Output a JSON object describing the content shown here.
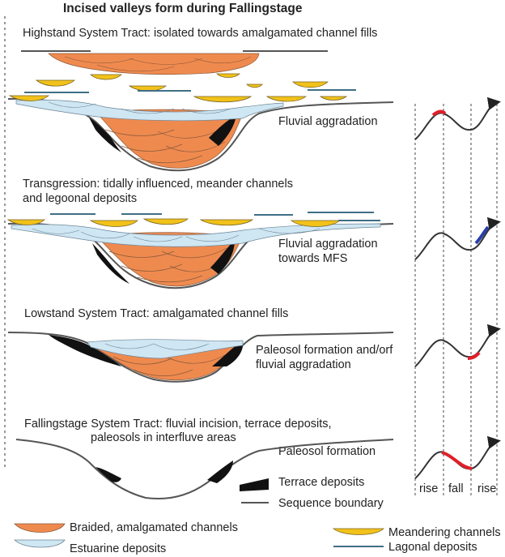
{
  "title": "Incised valleys form during Fallingstage",
  "panels": [
    {
      "heading": "Highstand System Tract: isolated towards amalgamated channel fills",
      "process": "Fluvial aggradation"
    },
    {
      "heading_line1": "Transgression: tidally influenced, meander channels",
      "heading_line2": "and legoonal deposits",
      "process_line1": "Fluvial aggradation",
      "process_line2": "towards MFS"
    },
    {
      "heading": "Lowstand System Tract: amalgamated channel fills",
      "process_line1": "Paleosol formation and/orf",
      "process_line2": "fluvial aggradation"
    },
    {
      "heading_line1": "Fallingstage System Tract: fluvial incision, terrace deposits,",
      "heading_line2": "paleosols in interfluve areas",
      "process": "Paleosol formation"
    }
  ],
  "sea_level_labels": [
    "rise",
    "fall",
    "rise"
  ],
  "legend": {
    "terrace": "Terrace deposits",
    "sequence": "Sequence boundary",
    "braided": "Braided, amalgamated channels",
    "estuarine": "Estuarine deposits",
    "meandering": "Meandering channels",
    "lagoonal": "Lagonal deposits"
  },
  "colors": {
    "braided": "#ef8a4f",
    "estuarine": "#cfe6f3",
    "meandering": "#f2c21a",
    "lagoonal": "#3f6f86",
    "terrace": "#111111",
    "highlight_red": "#e0202a",
    "highlight_blue": "#2a3ea8"
  }
}
